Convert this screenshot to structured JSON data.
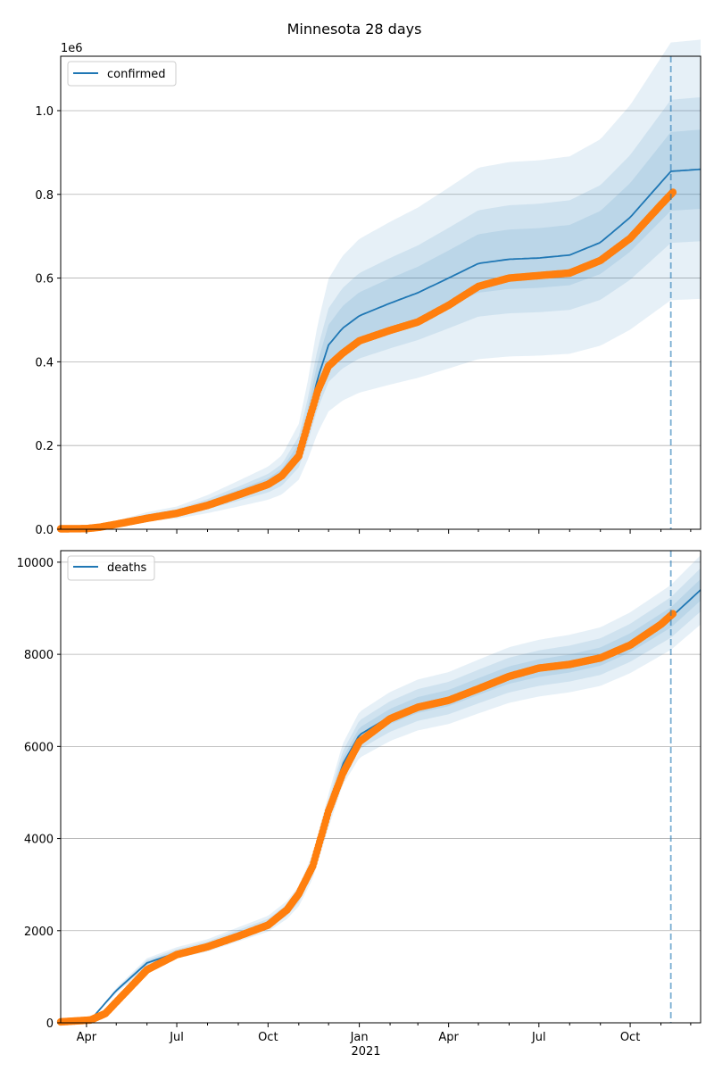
{
  "chart_data": [
    {
      "type": "line",
      "title": "Minnesota 28 days",
      "series": [
        {
          "name": "confirmed",
          "kind": "model",
          "x": [
            "2020-03-06",
            "2020-04-01",
            "2020-05-01",
            "2020-06-01",
            "2020-07-01",
            "2020-08-01",
            "2020-09-01",
            "2020-10-01",
            "2020-10-15",
            "2020-11-01",
            "2020-11-10",
            "2020-11-20",
            "2020-12-01",
            "2020-12-15",
            "2021-01-01",
            "2021-02-01",
            "2021-03-01",
            "2021-04-01",
            "2021-05-01",
            "2021-06-01",
            "2021-07-01",
            "2021-08-01",
            "2021-09-01",
            "2021-10-01",
            "2021-11-11",
            "2021-12-11"
          ],
          "y": [
            1000,
            3000,
            15000,
            30000,
            40000,
            60000,
            85000,
            110000,
            130000,
            185000,
            260000,
            360000,
            440000,
            480000,
            510000,
            540000,
            565000,
            600000,
            635000,
            645000,
            648000,
            655000,
            685000,
            745000,
            855000,
            860000
          ]
        },
        {
          "name": "",
          "kind": "observed",
          "x": [
            "2020-03-06",
            "2020-04-01",
            "2020-04-15",
            "2020-05-01",
            "2020-06-01",
            "2020-07-01",
            "2020-08-01",
            "2020-09-01",
            "2020-10-01",
            "2020-10-15",
            "2020-11-01",
            "2020-11-10",
            "2020-11-20",
            "2020-12-01",
            "2020-12-15",
            "2021-01-01",
            "2021-02-01",
            "2021-03-01",
            "2021-04-01",
            "2021-05-01",
            "2021-06-01",
            "2021-07-01",
            "2021-08-01",
            "2021-09-01",
            "2021-10-01",
            "2021-11-01",
            "2021-11-13"
          ],
          "y": [
            1000,
            1500,
            5000,
            12000,
            26000,
            38000,
            57000,
            82000,
            107000,
            128000,
            175000,
            250000,
            330000,
            390000,
            420000,
            450000,
            475000,
            495000,
            535000,
            580000,
            600000,
            606000,
            612000,
            642000,
            695000,
            775000,
            805000
          ]
        }
      ],
      "band_levels": [
        0.11,
        0.2,
        0.36
      ],
      "ylim": [
        0,
        1130000
      ],
      "yticks": [
        0,
        200000,
        400000,
        600000,
        800000,
        1000000
      ],
      "ytick_labels": [
        "0.0",
        "0.2",
        "0.4",
        "0.6",
        "0.8",
        "1.0"
      ],
      "y_offset_text": "1e6",
      "xlim": [
        "2020-03-06",
        "2021-12-11"
      ],
      "vline": "2021-11-11",
      "grid": "y",
      "legend": "top-left"
    },
    {
      "type": "line",
      "series": [
        {
          "name": "deaths",
          "kind": "model",
          "x": [
            "2020-03-06",
            "2020-04-05",
            "2020-05-01",
            "2020-06-01",
            "2020-07-01",
            "2020-08-01",
            "2020-09-01",
            "2020-10-01",
            "2020-10-20",
            "2020-11-01",
            "2020-11-15",
            "2020-12-01",
            "2020-12-15",
            "2021-01-01",
            "2021-02-01",
            "2021-03-01",
            "2021-04-01",
            "2021-05-01",
            "2021-06-01",
            "2021-07-01",
            "2021-08-01",
            "2021-09-01",
            "2021-10-01",
            "2021-11-11",
            "2021-12-11"
          ],
          "y": [
            20,
            60,
            700,
            1300,
            1520,
            1680,
            1920,
            2150,
            2450,
            2750,
            3400,
            4600,
            5600,
            6250,
            6650,
            6900,
            7050,
            7300,
            7550,
            7700,
            7800,
            7950,
            8250,
            8800,
            9400
          ]
        },
        {
          "name": "",
          "kind": "observed",
          "x": [
            "2020-03-06",
            "2020-04-05",
            "2020-04-20",
            "2020-05-01",
            "2020-06-01",
            "2020-07-01",
            "2020-08-01",
            "2020-09-01",
            "2020-10-01",
            "2020-10-20",
            "2020-11-01",
            "2020-11-15",
            "2020-12-01",
            "2020-12-15",
            "2021-01-01",
            "2021-02-01",
            "2021-03-01",
            "2021-04-01",
            "2021-05-01",
            "2021-06-01",
            "2021-07-01",
            "2021-08-01",
            "2021-09-01",
            "2021-10-01",
            "2021-11-01",
            "2021-11-13"
          ],
          "y": [
            20,
            60,
            200,
            450,
            1150,
            1480,
            1650,
            1880,
            2120,
            2450,
            2800,
            3400,
            4600,
            5400,
            6100,
            6600,
            6850,
            7000,
            7250,
            7520,
            7700,
            7780,
            7920,
            8200,
            8650,
            8880
          ]
        }
      ],
      "band_levels": [
        0.025,
        0.05,
        0.08
      ],
      "ylim": [
        0,
        10250
      ],
      "yticks": [
        0,
        2000,
        4000,
        6000,
        8000,
        10000
      ],
      "ytick_labels": [
        "0",
        "2000",
        "4000",
        "6000",
        "8000",
        "10000"
      ],
      "xlim": [
        "2020-03-06",
        "2021-12-11"
      ],
      "xticks": [
        "2020-04-01",
        "2020-07-01",
        "2020-10-01",
        "2021-01-01",
        "2021-04-01",
        "2021-07-01",
        "2021-10-01"
      ],
      "xtick_labels": [
        "Apr",
        "Jul",
        "Oct",
        "Jan",
        "Apr",
        "Jul",
        "Oct"
      ],
      "x_year_label": "2021",
      "vline": "2021-11-11",
      "grid": "y",
      "legend": "top-left"
    }
  ],
  "colors": {
    "model": "#1f77b4",
    "observed": "#ff7f0e",
    "band": "#1f77b4",
    "grid": "#b0b0b0"
  }
}
